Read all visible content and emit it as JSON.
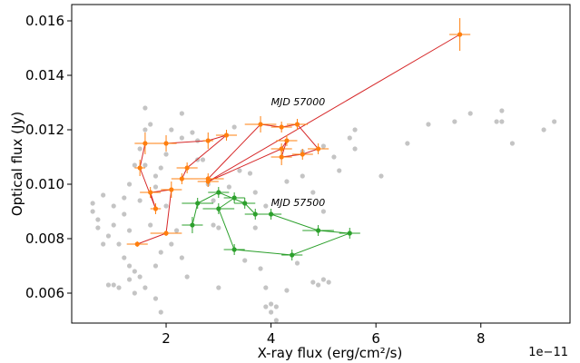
{
  "chart_data": {
    "type": "scatter",
    "xlabel": "X-ray flux (erg/cm²/s)",
    "ylabel": "Optical flux (Jy)",
    "x_multiplier_label": "1e−11",
    "xlim": [
      0.2,
      9.7
    ],
    "ylim": [
      0.0049,
      0.0166
    ],
    "x_ticks": [
      2,
      4,
      6,
      8
    ],
    "y_ticks": [
      0.006,
      0.008,
      0.01,
      0.012,
      0.014,
      0.016
    ],
    "y_tick_labels": [
      "0.006",
      "0.008",
      "0.010",
      "0.012",
      "0.014",
      "0.016"
    ],
    "grid": false,
    "annotations": [
      {
        "text": "MJD 57000",
        "x": 4.0,
        "y": 0.0129,
        "color": "#E8590C"
      },
      {
        "text": "MJD 57500",
        "x": 4.0,
        "y": 0.0092,
        "color": "#2CA02C"
      }
    ],
    "series": [
      {
        "role": "background",
        "color": "#b0b0b0",
        "points": [
          [
            0.6,
            0.009
          ],
          [
            0.6,
            0.0093
          ],
          [
            0.8,
            0.0096
          ],
          [
            0.7,
            0.0087
          ],
          [
            0.9,
            0.0081
          ],
          [
            1.0,
            0.0085
          ],
          [
            0.8,
            0.0078
          ],
          [
            0.9,
            0.0063
          ],
          [
            1.0,
            0.0063
          ],
          [
            1.1,
            0.0062
          ],
          [
            1.0,
            0.0092
          ],
          [
            1.2,
            0.0089
          ],
          [
            1.1,
            0.0078
          ],
          [
            1.2,
            0.0073
          ],
          [
            1.3,
            0.007
          ],
          [
            1.4,
            0.0068
          ],
          [
            1.5,
            0.0066
          ],
          [
            1.3,
            0.0065
          ],
          [
            1.4,
            0.006
          ],
          [
            1.6,
            0.0062
          ],
          [
            1.2,
            0.0095
          ],
          [
            1.3,
            0.01
          ],
          [
            1.4,
            0.0107
          ],
          [
            1.6,
            0.0107
          ],
          [
            1.5,
            0.0113
          ],
          [
            1.6,
            0.012
          ],
          [
            1.6,
            0.0128
          ],
          [
            1.7,
            0.0122
          ],
          [
            1.8,
            0.0103
          ],
          [
            1.8,
            0.0099
          ],
          [
            1.9,
            0.0106
          ],
          [
            1.8,
            0.007
          ],
          [
            1.9,
            0.0075
          ],
          [
            1.8,
            0.0058
          ],
          [
            1.9,
            0.0053
          ],
          [
            2.1,
            0.0078
          ],
          [
            2.2,
            0.0083
          ],
          [
            2.0,
            0.0092
          ],
          [
            2.3,
            0.0073
          ],
          [
            2.4,
            0.0066
          ],
          [
            2.1,
            0.012
          ],
          [
            2.3,
            0.0126
          ],
          [
            2.5,
            0.0119
          ],
          [
            2.6,
            0.0116
          ],
          [
            2.7,
            0.0109
          ],
          [
            2.8,
            0.01
          ],
          [
            2.9,
            0.0094
          ],
          [
            3.0,
            0.0084
          ],
          [
            3.0,
            0.0062
          ],
          [
            2.3,
            0.0117
          ],
          [
            3.3,
            0.0121
          ],
          [
            3.4,
            0.0105
          ],
          [
            3.6,
            0.0104
          ],
          [
            3.7,
            0.0097
          ],
          [
            3.9,
            0.0092
          ],
          [
            3.7,
            0.0084
          ],
          [
            3.8,
            0.0069
          ],
          [
            3.9,
            0.0062
          ],
          [
            4.0,
            0.0056
          ],
          [
            4.1,
            0.0055
          ],
          [
            4.0,
            0.0053
          ],
          [
            3.9,
            0.0055
          ],
          [
            4.1,
            0.005
          ],
          [
            4.3,
            0.0061
          ],
          [
            4.3,
            0.0101
          ],
          [
            4.6,
            0.0103
          ],
          [
            4.6,
            0.0112
          ],
          [
            4.8,
            0.0097
          ],
          [
            4.8,
            0.0064
          ],
          [
            4.9,
            0.0063
          ],
          [
            5.0,
            0.009
          ],
          [
            5.0,
            0.0114
          ],
          [
            5.2,
            0.011
          ],
          [
            5.3,
            0.0105
          ],
          [
            5.5,
            0.0117
          ],
          [
            5.6,
            0.012
          ],
          [
            5.6,
            0.0113
          ],
          [
            5.0,
            0.0065
          ],
          [
            5.1,
            0.0064
          ],
          [
            6.1,
            0.0103
          ],
          [
            6.6,
            0.0115
          ],
          [
            7.0,
            0.0122
          ],
          [
            7.5,
            0.0123
          ],
          [
            7.8,
            0.0126
          ],
          [
            8.3,
            0.0123
          ],
          [
            8.4,
            0.0127
          ],
          [
            8.4,
            0.0123
          ],
          [
            8.6,
            0.0115
          ],
          [
            9.2,
            0.012
          ],
          [
            9.4,
            0.0123
          ],
          [
            0.7,
            0.0084
          ],
          [
            1.5,
            0.0094
          ],
          [
            1.7,
            0.0085
          ],
          [
            2.6,
            0.0109
          ],
          [
            3.2,
            0.0099
          ],
          [
            1.3,
            0.0083
          ],
          [
            2.9,
            0.0085
          ],
          [
            3.5,
            0.0072
          ],
          [
            4.5,
            0.0071
          ],
          [
            2.0,
            0.0111
          ]
        ]
      },
      {
        "role": "red-orange track",
        "line_color": "#d62728",
        "marker_color": "#ff7f0e",
        "points": [
          [
            1.45,
            0.0078,
            0.2,
            0.0001
          ],
          [
            2.0,
            0.0082,
            0.3,
            0.0001
          ],
          [
            2.1,
            0.0098,
            0.2,
            0.0003
          ],
          [
            1.7,
            0.0097,
            0.2,
            0.0002
          ],
          [
            1.8,
            0.0091,
            0.1,
            0.0002
          ],
          [
            1.5,
            0.0106,
            0.1,
            0.0003
          ],
          [
            1.6,
            0.0115,
            0.2,
            0.0004
          ],
          [
            2.0,
            0.0115,
            0.2,
            0.0003
          ],
          [
            2.8,
            0.0116,
            0.1,
            0.0003
          ],
          [
            3.15,
            0.0118,
            0.2,
            0.0002
          ],
          [
            2.4,
            0.0106,
            0.2,
            0.0002
          ],
          [
            2.3,
            0.0102,
            0.2,
            0.0002
          ],
          [
            2.8,
            0.0102,
            0.3,
            0.0002
          ],
          [
            3.8,
            0.0122,
            0.3,
            0.0003
          ],
          [
            4.2,
            0.0121,
            0.2,
            0.0002
          ],
          [
            4.5,
            0.0122,
            0.2,
            0.0002
          ],
          [
            4.9,
            0.0113,
            0.2,
            0.0002
          ],
          [
            4.6,
            0.0111,
            0.2,
            0.0002
          ],
          [
            4.2,
            0.011,
            0.2,
            0.0003
          ],
          [
            4.3,
            0.0116,
            0.2,
            0.0002
          ],
          [
            4.2,
            0.0113,
            0.2,
            0.0002
          ],
          [
            2.8,
            0.0101,
            0.2,
            0.0002
          ],
          [
            7.6,
            0.0155,
            0.2,
            0.0006
          ]
        ]
      },
      {
        "role": "green track",
        "line_color": "#2ca02c",
        "marker_color": "#2ca02c",
        "points": [
          [
            2.5,
            0.0085,
            0.2,
            0.0003
          ],
          [
            2.6,
            0.0093,
            0.3,
            0.0002
          ],
          [
            3.0,
            0.0097,
            0.2,
            0.0002
          ],
          [
            3.5,
            0.0093,
            0.2,
            0.0002
          ],
          [
            3.7,
            0.0089,
            0.2,
            0.0002
          ],
          [
            4.0,
            0.0089,
            0.2,
            0.0002
          ],
          [
            4.9,
            0.0083,
            0.3,
            0.0002
          ],
          [
            5.5,
            0.0082,
            0.2,
            0.0002
          ],
          [
            4.4,
            0.0074,
            0.2,
            0.0002
          ],
          [
            3.3,
            0.0076,
            0.2,
            0.0002
          ],
          [
            3.0,
            0.0091,
            0.3,
            0.0002
          ],
          [
            3.3,
            0.0095,
            0.2,
            0.0002
          ]
        ]
      }
    ]
  }
}
